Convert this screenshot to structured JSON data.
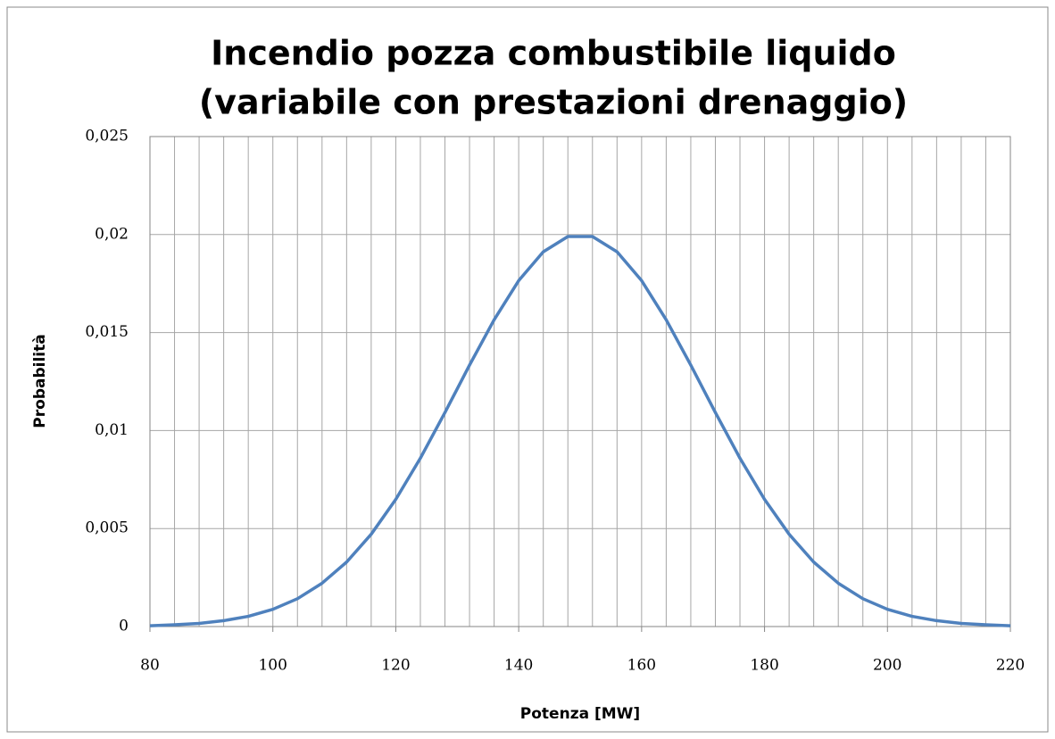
{
  "chart_data": {
    "type": "line",
    "title": [
      "Incendio pozza combustibile liquido",
      "(variabile con prestazioni drenaggio)"
    ],
    "xlabel": "Potenza [MW]",
    "ylabel": "Probabilità",
    "x": [
      80,
      84,
      88,
      92,
      96,
      100,
      104,
      108,
      112,
      116,
      120,
      124,
      128,
      132,
      136,
      140,
      144,
      148,
      152,
      156,
      160,
      164,
      168,
      172,
      176,
      180,
      184,
      188,
      192,
      196,
      200,
      204,
      208,
      212,
      216,
      220
    ],
    "series": [
      {
        "color": "#4f81bd",
        "values": [
          4e-05,
          9e-05,
          0.00016,
          0.0003,
          0.00052,
          0.00088,
          0.00142,
          0.00221,
          0.00329,
          0.00471,
          0.00649,
          0.00859,
          0.01092,
          0.01334,
          0.01565,
          0.01765,
          0.01912,
          0.0199,
          0.0199,
          0.01912,
          0.01765,
          0.01565,
          0.01334,
          0.01092,
          0.00859,
          0.00649,
          0.00471,
          0.00329,
          0.00221,
          0.00142,
          0.00088,
          0.00052,
          0.0003,
          0.00016,
          9e-05,
          4e-05
        ]
      }
    ],
    "xlim": [
      80,
      220
    ],
    "xticks": [
      80,
      100,
      120,
      140,
      160,
      180,
      200,
      220
    ],
    "ylim": [
      0,
      0.025
    ],
    "yticks": [
      0,
      {
        "value": 0.005,
        "label": "0,005"
      },
      {
        "value": 0.01,
        "label": "0,01"
      },
      {
        "value": 0.015,
        "label": "0,015"
      },
      {
        "value": 0.02,
        "label": "0,02"
      },
      {
        "value": 0.025,
        "label": "0,025"
      }
    ],
    "grid": true
  }
}
